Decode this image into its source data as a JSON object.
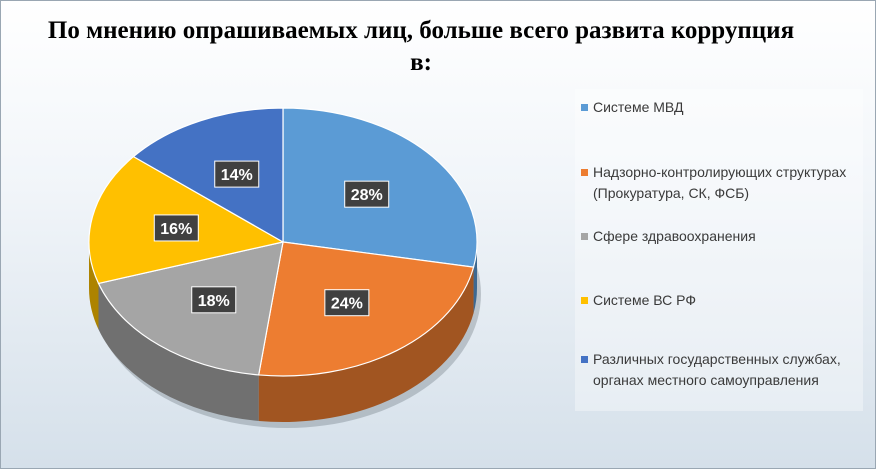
{
  "chart_data": {
    "type": "pie",
    "title": "По мнению опрашиваемых лиц, больше всего развита коррупция в:",
    "categories": [
      "Системе МВД",
      "Надзорно-контролирующих структурах (Прокуратура, СК, ФСБ)",
      "Сфере здравоохранения",
      "Системе ВС РФ",
      "Различных государственных службах, органах местного самоуправления"
    ],
    "values": [
      28,
      24,
      18,
      16,
      14
    ],
    "labels": [
      "28%",
      "24%",
      "18%",
      "16%",
      "14%"
    ],
    "colors": [
      "#5b9bd5",
      "#ed7d31",
      "#a5a5a5",
      "#ffc000",
      "#4472c4"
    ],
    "legend_position": "right",
    "style": "3d"
  }
}
